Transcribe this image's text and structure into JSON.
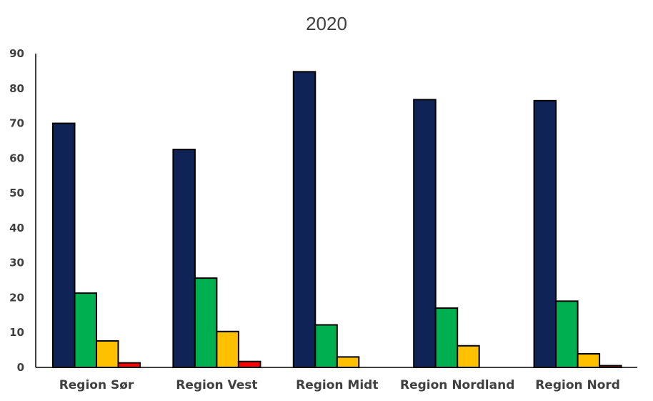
{
  "chart_data": {
    "type": "bar",
    "title": "2020",
    "xlabel": "",
    "ylabel": "",
    "ylim": [
      0,
      90
    ],
    "yticks": [
      0,
      10,
      20,
      30,
      40,
      50,
      60,
      70,
      80,
      90
    ],
    "grid": false,
    "legend": "none",
    "categories": [
      "Region Sør",
      "Region Vest",
      "Region Midt",
      "Region Nordland",
      "Region Nord"
    ],
    "series": [
      {
        "color": "#0f2356",
        "values": [
          70.0,
          62.5,
          84.8,
          76.8,
          76.5
        ]
      },
      {
        "color": "#00b050",
        "values": [
          21.3,
          25.6,
          12.2,
          17.0,
          19.0
        ]
      },
      {
        "color": "#ffc000",
        "values": [
          7.6,
          10.3,
          3.0,
          6.2,
          3.9
        ]
      },
      {
        "color": "#ff0000",
        "values": [
          1.3,
          1.7,
          0.0,
          0.0,
          0.5
        ]
      }
    ]
  }
}
